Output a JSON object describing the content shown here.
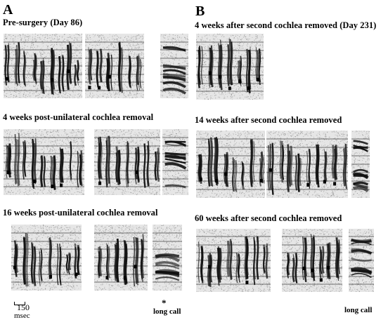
{
  "figure": {
    "panel_a": {
      "letter": "A",
      "rows": [
        {
          "title": "Pre-surgery (Day 86)"
        },
        {
          "title": "4 weeks post-unilateral cochlea removal"
        },
        {
          "title": "16 weeks post-unilateral cochlea removal"
        }
      ],
      "scale_value": "150",
      "scale_unit": "msec",
      "asterisk": "*",
      "long_call_label": "long call"
    },
    "panel_b": {
      "letter": "B",
      "rows": [
        {
          "title": "4 weeks after second cochlea removed (Day 231)"
        },
        {
          "title": "14 weeks after second cochlea removed"
        },
        {
          "title": "60 weeks after second cochlea removed"
        }
      ],
      "long_call_label": "long call"
    }
  }
}
